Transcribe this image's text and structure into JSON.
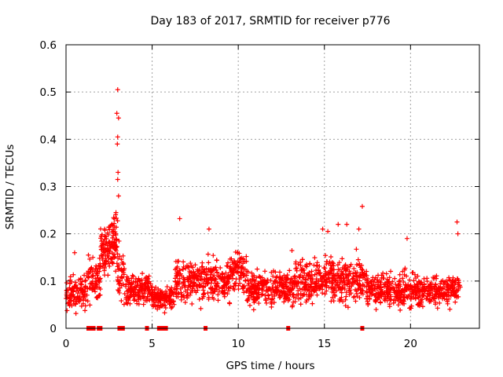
{
  "chart_data": {
    "type": "scatter",
    "title": "Day 183 of 2017, SRMTID for receiver p776",
    "xlabel": "GPS time / hours",
    "ylabel": "SRMTID / TECUs",
    "xlim": [
      0,
      24
    ],
    "ylim": [
      0,
      0.6
    ],
    "x_ticks": [
      0,
      5,
      10,
      15,
      20
    ],
    "x_tick_labels": [
      "0",
      "5",
      "10",
      "15",
      "20"
    ],
    "y_ticks": [
      0,
      0.1,
      0.2,
      0.3,
      0.4,
      0.5,
      0.6
    ],
    "y_tick_labels": [
      "0",
      "0.1",
      "0.2",
      "0.3",
      "0.4",
      "0.5",
      "0.6"
    ],
    "grid": true,
    "marker": "plus",
    "series_color": "#ff0000",
    "marker_color": "#ff0000",
    "data_x_range": [
      0,
      22.9
    ],
    "clusters": [
      {
        "x": [
          0.0,
          1.2
        ],
        "center": 0.075,
        "spread": 0.03
      },
      {
        "x": [
          1.2,
          2.0
        ],
        "center": 0.1,
        "spread": 0.04
      },
      {
        "x": [
          2.0,
          3.0
        ],
        "center": 0.17,
        "spread": 0.05
      },
      {
        "x": [
          3.0,
          3.4
        ],
        "center": 0.12,
        "spread": 0.05
      },
      {
        "x": [
          3.4,
          5.0
        ],
        "center": 0.08,
        "spread": 0.03
      },
      {
        "x": [
          5.0,
          6.3
        ],
        "center": 0.065,
        "spread": 0.02
      },
      {
        "x": [
          6.3,
          9.5
        ],
        "center": 0.1,
        "spread": 0.035
      },
      {
        "x": [
          9.5,
          10.5
        ],
        "center": 0.12,
        "spread": 0.04
      },
      {
        "x": [
          10.5,
          13.0
        ],
        "center": 0.085,
        "spread": 0.03
      },
      {
        "x": [
          13.0,
          15.0
        ],
        "center": 0.1,
        "spread": 0.04
      },
      {
        "x": [
          15.0,
          17.5
        ],
        "center": 0.1,
        "spread": 0.04
      },
      {
        "x": [
          17.5,
          22.9
        ],
        "center": 0.08,
        "spread": 0.03
      }
    ],
    "outliers": [
      {
        "x": 3.0,
        "y": 0.505
      },
      {
        "x": 2.95,
        "y": 0.455
      },
      {
        "x": 3.05,
        "y": 0.445
      },
      {
        "x": 3.0,
        "y": 0.405
      },
      {
        "x": 2.98,
        "y": 0.39
      },
      {
        "x": 3.02,
        "y": 0.33
      },
      {
        "x": 3.0,
        "y": 0.315
      },
      {
        "x": 3.05,
        "y": 0.28
      },
      {
        "x": 2.9,
        "y": 0.245
      },
      {
        "x": 6.6,
        "y": 0.232
      },
      {
        "x": 8.3,
        "y": 0.21
      },
      {
        "x": 14.9,
        "y": 0.21
      },
      {
        "x": 15.2,
        "y": 0.205
      },
      {
        "x": 15.8,
        "y": 0.22
      },
      {
        "x": 16.3,
        "y": 0.22
      },
      {
        "x": 17.2,
        "y": 0.258
      },
      {
        "x": 17.0,
        "y": 0.21
      },
      {
        "x": 19.8,
        "y": 0.19
      },
      {
        "x": 22.7,
        "y": 0.225
      },
      {
        "x": 22.75,
        "y": 0.2
      },
      {
        "x": 1.3,
        "y": 0.155
      },
      {
        "x": 0.5,
        "y": 0.16
      }
    ],
    "gap_markers_x": [
      1.3,
      1.4,
      1.5,
      1.6,
      1.9,
      2.0,
      3.1,
      3.3,
      4.7,
      5.4,
      5.5,
      5.6,
      5.7,
      5.8,
      8.1,
      12.9,
      17.2
    ],
    "gap_marker_y": 0
  }
}
